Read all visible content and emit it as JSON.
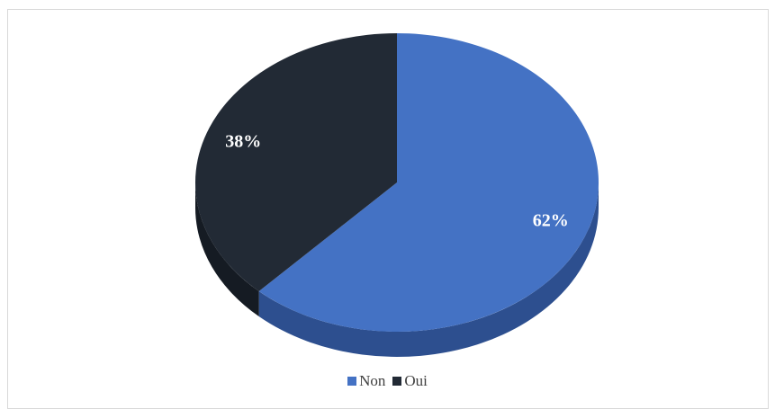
{
  "chart_data": {
    "type": "pie",
    "categories": [
      "Non",
      "Oui"
    ],
    "values": [
      62,
      38
    ],
    "labels": [
      "62%",
      "38%"
    ],
    "colors": [
      "#4472c4",
      "#222a35"
    ],
    "side_colors": [
      "#2d4f8f",
      "#151b23"
    ],
    "legend_position": "bottom",
    "style": "3d"
  }
}
